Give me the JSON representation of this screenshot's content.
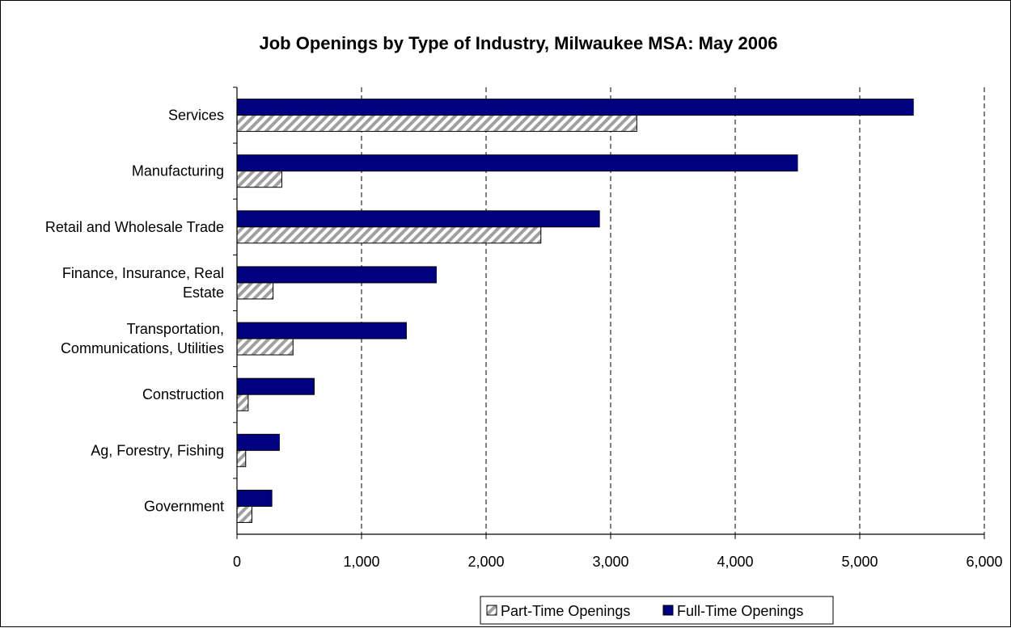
{
  "chart_data": {
    "type": "bar",
    "orientation": "horizontal",
    "title": "Job Openings by Type of Industry, Milwaukee MSA: May 2006",
    "xlabel": "",
    "ylabel": "",
    "categories": [
      [
        "Services"
      ],
      [
        "Manufacturing"
      ],
      [
        "Retail and Wholesale Trade"
      ],
      [
        "Finance, Insurance, Real",
        "Estate"
      ],
      [
        "Transportation,",
        "Communications, Utilities"
      ],
      [
        "Construction"
      ],
      [
        "Ag, Forestry, Fishing"
      ],
      [
        "Government"
      ]
    ],
    "series": [
      {
        "name": "Full-Time Openings",
        "color": "#000080",
        "pattern": "solid",
        "values": [
          5430,
          4500,
          2910,
          1600,
          1360,
          620,
          340,
          280
        ]
      },
      {
        "name": "Part-Time Openings",
        "color": "#808080",
        "pattern": "diagonal-hatch",
        "values": [
          3210,
          360,
          2440,
          290,
          450,
          90,
          70,
          120
        ]
      }
    ],
    "xlim": [
      0,
      6000
    ],
    "xticks": [
      0,
      1000,
      2000,
      3000,
      4000,
      5000,
      6000
    ],
    "xtick_labels": [
      "0",
      "1,000",
      "2,000",
      "3,000",
      "4,000",
      "5,000",
      "6,000"
    ],
    "grid": "vertical dashed",
    "legend": {
      "placement": "bottom",
      "entries": [
        "Part-Time Openings",
        "Full-Time Openings"
      ]
    }
  }
}
